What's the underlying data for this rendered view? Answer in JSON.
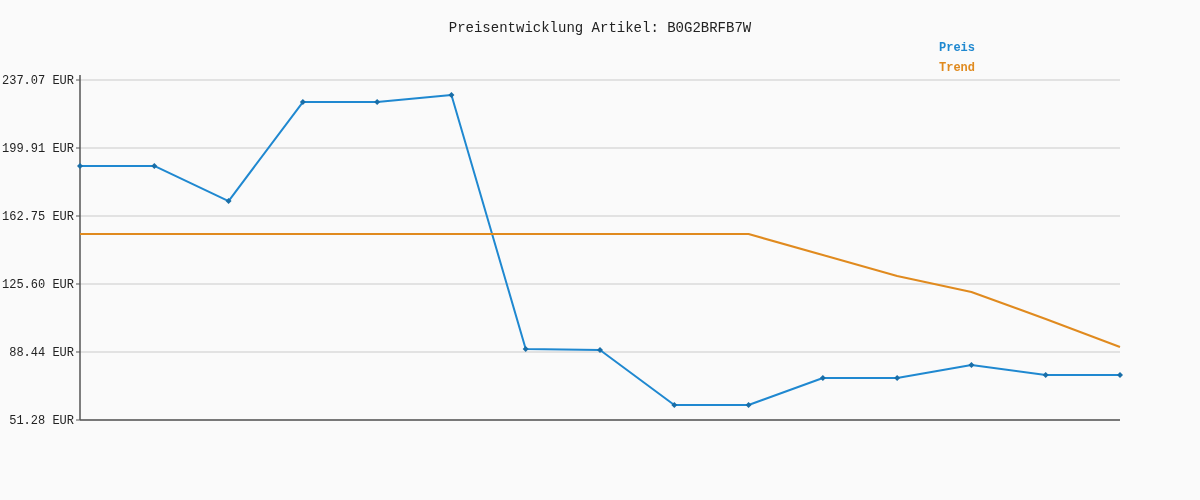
{
  "chart_data": {
    "type": "line",
    "title": "Preisentwicklung Artikel: B0G2BRFB7W",
    "categories": [
      null,
      null,
      null,
      null,
      null,
      null,
      null,
      null,
      null,
      null,
      null,
      null,
      null,
      null,
      null
    ],
    "series": [
      {
        "name": "Preis",
        "color": "#1f88d0",
        "marker": "diamond",
        "values": [
          190.1,
          190.1,
          170.9,
          225.0,
          225.0,
          228.9,
          90.1,
          89.5,
          59.5,
          59.5,
          74.2,
          74.2,
          81.3,
          75.9,
          75.9
        ]
      },
      {
        "name": "Trend",
        "color": "#e08a1e",
        "marker": "none",
        "values": [
          152.9,
          152.9,
          152.9,
          152.9,
          152.9,
          152.9,
          152.9,
          152.9,
          152.9,
          152.9,
          141.4,
          130.0,
          121.2,
          106.5,
          91.2
        ]
      }
    ],
    "ylim": [
      51.28,
      237.07
    ],
    "yticks": [
      {
        "value": 51.28,
        "label": "51.28 EUR"
      },
      {
        "value": 88.44,
        "label": "88.44 EUR"
      },
      {
        "value": 125.6,
        "label": "125.60 EUR"
      },
      {
        "value": 162.75,
        "label": "162.75 EUR"
      },
      {
        "value": 199.91,
        "label": "199.91 EUR"
      },
      {
        "value": 237.07,
        "label": "237.07 EUR"
      }
    ],
    "grid": "y",
    "legend": "top right",
    "line_style": "solid"
  }
}
